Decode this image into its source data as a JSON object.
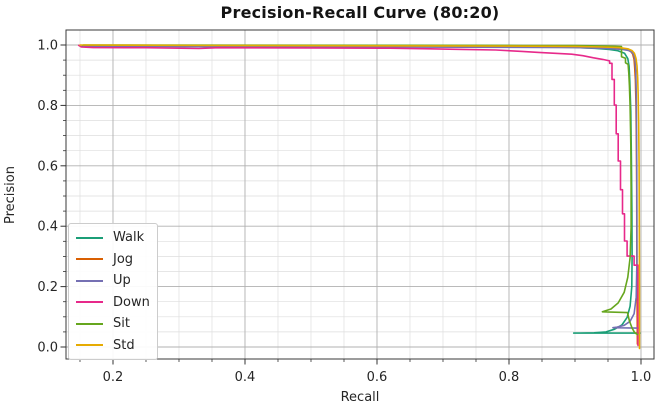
{
  "chart_data": {
    "type": "line",
    "title": "Precision-Recall Curve (80:20)",
    "xlabel": "Recall",
    "ylabel": "Precision",
    "xlim": [
      0.1288,
      1.0197
    ],
    "ylim": [
      -0.0397,
      1.0497
    ],
    "x_major_ticks": [
      0.2,
      0.4,
      0.6,
      0.8,
      1.0
    ],
    "y_major_ticks": [
      0.0,
      0.2,
      0.4,
      0.6,
      0.8,
      1.0
    ],
    "minor_tick_step": 0.05,
    "grid": "both",
    "legend": {
      "position": "lower-left",
      "entries": [
        "Walk",
        "Jog",
        "Up",
        "Down",
        "Sit",
        "Std"
      ]
    },
    "series": [
      {
        "name": "Walk",
        "color": "#1b9e77",
        "points": [
          [
            0.153,
            0.996
          ],
          [
            0.3,
            0.996
          ],
          [
            0.5,
            0.995
          ],
          [
            0.7,
            0.995
          ],
          [
            0.85,
            0.994
          ],
          [
            0.9,
            0.992
          ],
          [
            0.93,
            0.989
          ],
          [
            0.952,
            0.985
          ],
          [
            0.965,
            0.981
          ],
          [
            0.975,
            0.973
          ],
          [
            0.98,
            0.955
          ],
          [
            0.982,
            0.93
          ],
          [
            0.983,
            0.88
          ],
          [
            0.9845,
            0.78
          ],
          [
            0.9855,
            0.62
          ],
          [
            0.9862,
            0.45
          ],
          [
            0.9865,
            0.3
          ],
          [
            0.986,
            0.2
          ],
          [
            0.9835,
            0.135
          ],
          [
            0.979,
            0.098
          ],
          [
            0.971,
            0.073
          ],
          [
            0.96,
            0.059
          ],
          [
            0.947,
            0.05
          ],
          [
            0.929,
            0.047
          ],
          [
            0.908,
            0.046
          ],
          [
            0.898,
            0.046
          ],
          [
            0.9985,
            0.046
          ]
        ]
      },
      {
        "name": "Jog",
        "color": "#d95f02",
        "points": [
          [
            0.158,
            0.998
          ],
          [
            0.18,
            0.9965
          ],
          [
            0.35,
            0.996
          ],
          [
            0.55,
            0.9955
          ],
          [
            0.75,
            0.995
          ],
          [
            0.88,
            0.9935
          ],
          [
            0.93,
            0.9915
          ],
          [
            0.955,
            0.9895
          ],
          [
            0.97,
            0.9875
          ],
          [
            0.979,
            0.9845
          ],
          [
            0.9845,
            0.979
          ],
          [
            0.9875,
            0.97
          ],
          [
            0.9895,
            0.952
          ],
          [
            0.9905,
            0.925
          ],
          [
            0.9915,
            0.885
          ],
          [
            0.9925,
            0.8
          ],
          [
            0.993,
            0.68
          ],
          [
            0.9935,
            0.52
          ],
          [
            0.9937,
            0.36
          ],
          [
            0.994,
            0.22
          ],
          [
            0.9943,
            0.1
          ],
          [
            0.9945,
            0.01
          ]
        ]
      },
      {
        "name": "Up",
        "color": "#7570b3",
        "points": [
          [
            0.155,
            0.9955
          ],
          [
            0.35,
            0.9945
          ],
          [
            0.6,
            0.9935
          ],
          [
            0.8,
            0.9925
          ],
          [
            0.9,
            0.9915
          ],
          [
            0.935,
            0.9895
          ],
          [
            0.958,
            0.9875
          ],
          [
            0.972,
            0.9855
          ],
          [
            0.981,
            0.982
          ],
          [
            0.9865,
            0.976
          ],
          [
            0.9895,
            0.965
          ],
          [
            0.9912,
            0.945
          ],
          [
            0.9922,
            0.91
          ],
          [
            0.9928,
            0.85
          ],
          [
            0.9932,
            0.74
          ],
          [
            0.9936,
            0.6
          ],
          [
            0.9938,
            0.44
          ],
          [
            0.9938,
            0.28
          ],
          [
            0.9928,
            0.165
          ],
          [
            0.9895,
            0.11
          ],
          [
            0.9835,
            0.085
          ],
          [
            0.9745,
            0.072
          ],
          [
            0.9635,
            0.0655
          ],
          [
            0.9575,
            0.064
          ],
          [
            0.996,
            0.0625
          ]
        ]
      },
      {
        "name": "Down",
        "color": "#e7298a",
        "points": [
          [
            0.148,
            0.999
          ],
          [
            0.152,
            0.9935
          ],
          [
            0.17,
            0.9915
          ],
          [
            0.25,
            0.991
          ],
          [
            0.33,
            0.9885
          ],
          [
            0.36,
            0.991
          ],
          [
            0.5,
            0.9905
          ],
          [
            0.62,
            0.9895
          ],
          [
            0.68,
            0.9875
          ],
          [
            0.73,
            0.9855
          ],
          [
            0.78,
            0.9835
          ],
          [
            0.82,
            0.979
          ],
          [
            0.845,
            0.9755
          ],
          [
            0.87,
            0.9725
          ],
          [
            0.895,
            0.9695
          ],
          [
            0.912,
            0.9645
          ],
          [
            0.928,
            0.9575
          ],
          [
            0.942,
            0.9525
          ],
          [
            0.9525,
            0.9475
          ],
          [
            0.9525,
            0.9395
          ],
          [
            0.956,
            0.9395
          ],
          [
            0.956,
            0.886
          ],
          [
            0.9595,
            0.886
          ],
          [
            0.9595,
            0.801
          ],
          [
            0.9625,
            0.801
          ],
          [
            0.9625,
            0.706
          ],
          [
            0.9655,
            0.706
          ],
          [
            0.9655,
            0.616
          ],
          [
            0.969,
            0.616
          ],
          [
            0.969,
            0.521
          ],
          [
            0.972,
            0.521
          ],
          [
            0.972,
            0.441
          ],
          [
            0.975,
            0.441
          ],
          [
            0.975,
            0.351
          ],
          [
            0.979,
            0.351
          ],
          [
            0.979,
            0.301
          ],
          [
            0.9895,
            0.301
          ],
          [
            0.9895,
            0.271
          ],
          [
            0.9955,
            0.271
          ],
          [
            0.9955,
            0.005
          ]
        ]
      },
      {
        "name": "Sit",
        "color": "#66a61e",
        "points": [
          [
            0.155,
            1.0
          ],
          [
            0.4,
            0.9995
          ],
          [
            0.65,
            0.999
          ],
          [
            0.82,
            0.9985
          ],
          [
            0.9,
            0.998
          ],
          [
            0.935,
            0.997
          ],
          [
            0.957,
            0.996
          ],
          [
            0.9705,
            0.995
          ],
          [
            0.9705,
            0.961
          ],
          [
            0.9765,
            0.956
          ],
          [
            0.9765,
            0.941
          ],
          [
            0.9805,
            0.936
          ],
          [
            0.9815,
            0.906
          ],
          [
            0.9825,
            0.866
          ],
          [
            0.9835,
            0.796
          ],
          [
            0.9845,
            0.671
          ],
          [
            0.985,
            0.531
          ],
          [
            0.985,
            0.396
          ],
          [
            0.9835,
            0.296
          ],
          [
            0.98,
            0.231
          ],
          [
            0.9745,
            0.181
          ],
          [
            0.9655,
            0.146
          ],
          [
            0.9545,
            0.126
          ],
          [
            0.9415,
            0.1165
          ],
          [
            0.9795,
            0.114
          ],
          [
            0.9825,
            0.0865
          ],
          [
            0.9865,
            0.0625
          ],
          [
            0.9905,
            0.0475
          ],
          [
            0.9945,
            0.0415
          ]
        ]
      },
      {
        "name": "Std",
        "color": "#e6ab02",
        "points": [
          [
            0.15,
            1.0
          ],
          [
            0.35,
            0.9985
          ],
          [
            0.6,
            0.9975
          ],
          [
            0.8,
            0.9965
          ],
          [
            0.9,
            0.9955
          ],
          [
            0.942,
            0.9935
          ],
          [
            0.967,
            0.9915
          ],
          [
            0.98,
            0.9875
          ],
          [
            0.9865,
            0.9815
          ],
          [
            0.99,
            0.9725
          ],
          [
            0.9925,
            0.9555
          ],
          [
            0.994,
            0.9305
          ],
          [
            0.995,
            0.8905
          ],
          [
            0.9958,
            0.8305
          ],
          [
            0.9965,
            0.7405
          ],
          [
            0.9972,
            0.6005
          ],
          [
            0.9975,
            0.4
          ],
          [
            0.9977,
            0.2
          ],
          [
            0.9978,
            -0.005
          ]
        ]
      }
    ]
  },
  "style": {
    "background": "#ffffff",
    "grid_major_color": "#b0b0b0",
    "grid_minor_color": "#dedede",
    "spine_color": "#3a3a3a",
    "tick_color": "#333333",
    "tick_label_color": "#262626",
    "title_color": "#141414",
    "legend_border_color": "#cccccc",
    "line_width": 1.6
  }
}
